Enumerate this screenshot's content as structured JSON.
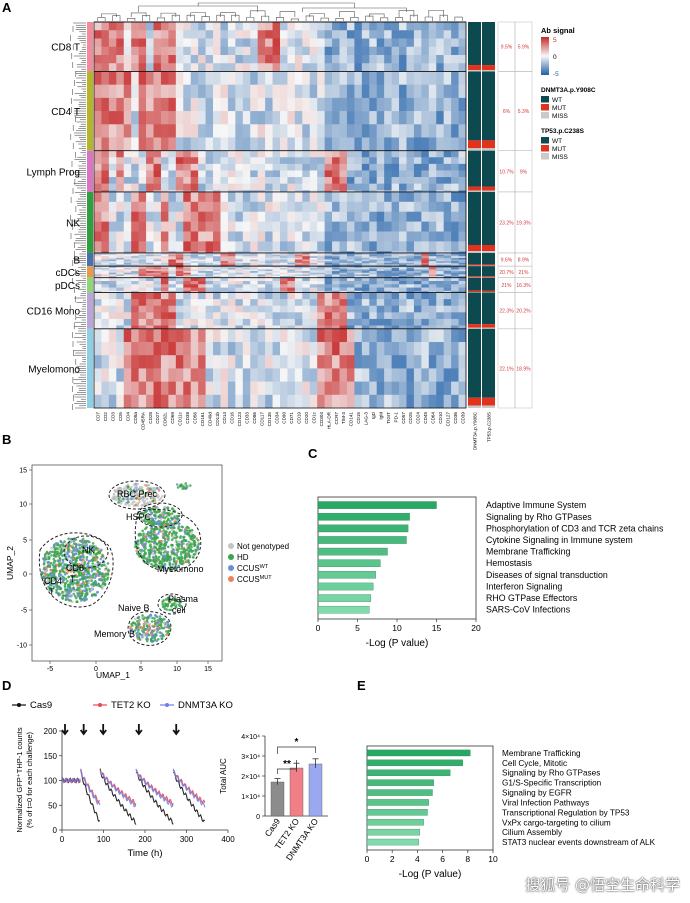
{
  "panel_labels": [
    "A",
    "B",
    "C",
    "D",
    "E"
  ],
  "heatmap": {
    "row_groups": [
      {
        "label": "CD8 T",
        "color": "#f28b9c",
        "rows": 30
      },
      {
        "label": "CD4 T",
        "color": "#b5b52a",
        "rows": 48
      },
      {
        "label": "Lymph Prog",
        "color": "#d975c4",
        "rows": 25
      },
      {
        "label": "NK",
        "color": "#2e9e3e",
        "rows": 37
      },
      {
        "label": "B",
        "color": "#4a6fb0",
        "rows": 8
      },
      {
        "label": "cDCs",
        "color": "#e39b4a",
        "rows": 7
      },
      {
        "label": "pDCs",
        "color": "#8fd67a",
        "rows": 9
      },
      {
        "label": "CD16 Mono",
        "color": "#b9a5d6",
        "rows": 22
      },
      {
        "label": "Myelomono",
        "color": "#8ecfe6",
        "rows": 48
      }
    ],
    "columns": [
      "CD7",
      "CD2",
      "CD3",
      "CD5",
      "CD4",
      "CD8a",
      "CD45RA",
      "CD28",
      "CD27",
      "CD62L",
      "CD69",
      "CD11c",
      "CD38",
      "CD56",
      "CD161",
      "CD49d",
      "CD11b",
      "CD14",
      "CD16",
      "CD123",
      "CD33",
      "CD86",
      "CD117",
      "CD135",
      "CD34",
      "CD90",
      "CD71",
      "CD19",
      "CD20",
      "CD1c",
      "CD304",
      "HLA-DR",
      "CCR7",
      "TIM-3",
      "CD141",
      "CD15",
      "LAG-3",
      "IgD",
      "IgM",
      "TIGIT",
      "PD-1",
      "CD57",
      "CD25",
      "CD24",
      "CD45",
      "CD64",
      "CD10",
      "CD127",
      "CD36",
      "CD39",
      "DNMT3A.p.Y908C",
      "TP53.p.C238S"
    ],
    "genotype_cols": [
      "DNMT3A.p.Y908C",
      "TP53.p.C238S"
    ],
    "pct_dnmt3a": [
      "9.5%",
      "6%",
      "10.7%",
      "23.2%",
      "9.6%",
      "20.7%",
      "21%",
      "22.3%",
      "22.1%"
    ],
    "pct_tp53": [
      "5.9%",
      "5.3%",
      "9%",
      "19.3%",
      "8.9%",
      "21%",
      "16.3%",
      "20.2%",
      "18.9%"
    ],
    "legend": {
      "signal_title": "Ab signal",
      "signal_ticks": [
        "5",
        "0",
        "-5"
      ],
      "dnmt3a_title": "DNMT3A.p.Y908C",
      "tp53_title": "TP53.p.C238S",
      "categories": [
        "WT",
        "MUT",
        "MISS"
      ],
      "category_colors": [
        "#0c4a4f",
        "#e0321c",
        "#c9c9c9"
      ]
    }
  },
  "umap": {
    "xlabel": "UMAP_1",
    "ylabel": "UMAP_2",
    "x_ticks": [
      "-5",
      "0",
      "5",
      "10",
      "15"
    ],
    "y_ticks": [
      "15",
      "10",
      "5",
      "0",
      "-5",
      "-10"
    ],
    "clusters": [
      "RBC Prec",
      "HSPC",
      "NK",
      "CD8",
      "CD4 T",
      "T",
      "Myelomono",
      "Plasma cell",
      "Naive B",
      "Memory B"
    ],
    "cluster_print": {
      "cd4": "CD4",
      "t": "T",
      "t2": "T",
      "plasma": "Plasma",
      "cell": "cell"
    },
    "legend": [
      {
        "label": "Not genotyped",
        "color": "#c4c4c4"
      },
      {
        "label": "HD",
        "color": "#3aa64a"
      },
      {
        "label": "CCUS",
        "sup": "WT",
        "color": "#6b8fd6"
      },
      {
        "label": "CCUS",
        "sup": "MUT",
        "color": "#f08060"
      }
    ]
  },
  "chart_data": [
    {
      "type": "bar",
      "panel": "C",
      "orientation": "horizontal",
      "categories": [
        "Adaptive Immune System",
        "Signaling by Rho GTPases",
        "Phosphorylation of CD3 and TCR zeta chains",
        "Cytokine Signaling in Immune system",
        "Membrane Trafficking",
        "Hemostasis",
        "Diseases of signal transduction",
        "Interferon Signaling",
        "RHO GTPase Effectors",
        "SARS-CoV Infections"
      ],
      "values": [
        15.0,
        11.6,
        11.4,
        11.2,
        8.8,
        7.9,
        7.3,
        7.0,
        6.7,
        6.5
      ],
      "xlabel": "-Log (P value)",
      "xlim": [
        0,
        20
      ],
      "x_ticks": [
        "0",
        "5",
        "10",
        "15",
        "20"
      ]
    },
    {
      "type": "line",
      "panel": "D",
      "series": [
        {
          "name": "Cas9",
          "color": "#111111"
        },
        {
          "name": "TET2 KO",
          "color": "#e8474f"
        },
        {
          "name": "DNMT3A KO",
          "color": "#6e7ee6"
        }
      ],
      "challenge_times": [
        0,
        45,
        92,
        178,
        268
      ],
      "xlabel": "Time (h)",
      "ylabel_line1": "Normalized GFP⁺THP-1 counts",
      "ylabel_line2": "(% of t=0 for each challenge)",
      "xlim": [
        0,
        400
      ],
      "ylim": [
        0,
        200
      ],
      "x_ticks": [
        "0",
        "100",
        "200",
        "300",
        "400"
      ],
      "y_ticks": [
        "0",
        "50",
        "100",
        "150",
        "200"
      ]
    },
    {
      "type": "bar",
      "panel": "D-inset",
      "categories": [
        "Cas9",
        "TET2 KO",
        "DNMT3A KO"
      ],
      "values": [
        17000,
        24000,
        26000
      ],
      "colors": [
        "#8c8c8c",
        "#f07f87",
        "#9aa8f0"
      ],
      "ylabel": "Total AUC",
      "ylim": [
        0,
        40000
      ],
      "y_ticks": [
        "0",
        "1×10⁴",
        "2×10⁴",
        "3×10⁴",
        "4×10⁴"
      ],
      "significance": [
        "**",
        "*"
      ]
    },
    {
      "type": "bar",
      "panel": "E",
      "orientation": "horizontal",
      "categories": [
        "Membrane Trafficking",
        "Cell Cycle, Mitotic",
        "Signaling by Rho GTPases",
        "G1/S-Specific Transcription",
        "Signaling by EGFR",
        "Viral Infection Pathways",
        "Transcriptional Regulation by TP53",
        "VxPx cargo-targeting to cilium",
        "Cilium Assembly",
        "STAT3 nuclear events downstream of ALK"
      ],
      "values": [
        8.2,
        7.6,
        6.6,
        5.3,
        5.2,
        4.9,
        4.8,
        4.5,
        4.2,
        4.1
      ],
      "xlabel": "-Log (P value)",
      "xlim": [
        0,
        10
      ],
      "x_ticks": [
        "0",
        "2",
        "4",
        "6",
        "8",
        "10"
      ]
    }
  ],
  "watermark": "搜狐号 @悟空生命科学"
}
